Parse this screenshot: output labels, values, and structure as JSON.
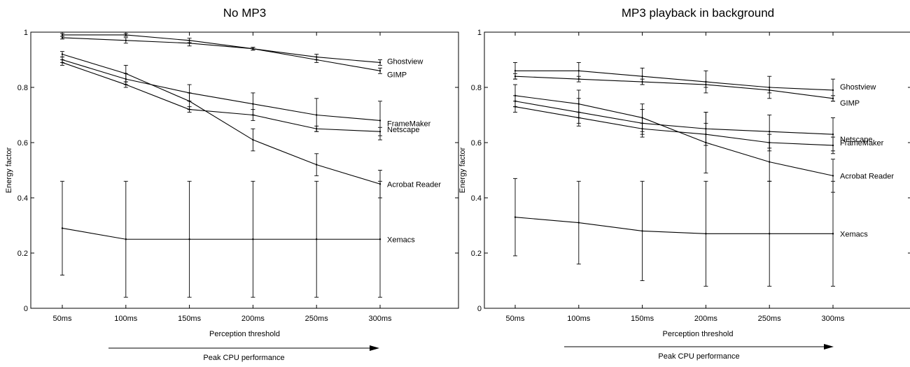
{
  "header_fragment": "",
  "chart_data": [
    {
      "type": "line",
      "title": "No MP3",
      "xlabel": "Perception threshold",
      "ylabel": "Energy factor",
      "arrow_label": "Peak CPU performance",
      "categories": [
        "50ms",
        "100ms",
        "150ms",
        "200ms",
        "250ms",
        "300ms"
      ],
      "ylim": [
        0,
        1
      ],
      "yticks": [
        "0",
        "0.2",
        "0.4",
        "0.6",
        "0.8",
        "1"
      ],
      "grid": false,
      "series": [
        {
          "name": "Ghostview",
          "values": [
            0.99,
            0.99,
            0.97,
            0.94,
            0.91,
            0.89
          ],
          "err": [
            0.005,
            0.005,
            0.008,
            0.005,
            0.01,
            0.01
          ]
        },
        {
          "name": "GIMP",
          "values": [
            0.98,
            0.97,
            0.96,
            0.94,
            0.9,
            0.86
          ],
          "err": [
            0.005,
            0.01,
            0.01,
            0.005,
            0.01,
            0.01
          ]
        },
        {
          "name": "Netscape",
          "values": [
            0.89,
            0.81,
            0.72,
            0.7,
            0.65,
            0.64
          ],
          "err": [
            0.01,
            0.01,
            0.01,
            0.02,
            0.01,
            0.015
          ]
        },
        {
          "name": "FrameMaker",
          "values": [
            0.9,
            0.83,
            0.78,
            0.74,
            0.7,
            0.68
          ],
          "err": [
            0.01,
            0.02,
            0.03,
            0.04,
            0.06,
            0.07
          ]
        },
        {
          "name": "Acrobat Reader",
          "values": [
            0.92,
            0.85,
            0.75,
            0.61,
            0.52,
            0.45
          ],
          "err": [
            0.01,
            0.03,
            0.03,
            0.04,
            0.04,
            0.05
          ]
        },
        {
          "name": "Xemacs",
          "values": [
            0.29,
            0.25,
            0.25,
            0.25,
            0.25,
            0.25
          ],
          "err": [
            0.17,
            0.21,
            0.21,
            0.21,
            0.21,
            0.21
          ]
        }
      ]
    },
    {
      "type": "line",
      "title": "MP3 playback in background",
      "xlabel": "Perception threshold",
      "ylabel": "Energy factor",
      "arrow_label": "Peak CPU performance",
      "categories": [
        "50ms",
        "100ms",
        "150ms",
        "200ms",
        "250ms",
        "300ms"
      ],
      "ylim": [
        0,
        1
      ],
      "yticks": [
        "0",
        "0.2",
        "0.4",
        "0.6",
        "0.8",
        "1"
      ],
      "grid": false,
      "series": [
        {
          "name": "Ghostview",
          "values": [
            0.86,
            0.86,
            0.84,
            0.82,
            0.8,
            0.79
          ],
          "err": [
            0.03,
            0.03,
            0.03,
            0.04,
            0.04,
            0.04
          ]
        },
        {
          "name": "GIMP",
          "values": [
            0.84,
            0.83,
            0.82,
            0.81,
            0.79,
            0.76
          ],
          "err": [
            0.01,
            0.01,
            0.01,
            0.01,
            0.01,
            0.01
          ]
        },
        {
          "name": "FrameMaker",
          "values": [
            0.73,
            0.69,
            0.65,
            0.63,
            0.6,
            0.59
          ],
          "err": [
            0.02,
            0.02,
            0.02,
            0.04,
            0.03,
            0.03
          ]
        },
        {
          "name": "Netscape",
          "values": [
            0.75,
            0.71,
            0.67,
            0.65,
            0.64,
            0.63
          ],
          "err": [
            0.02,
            0.05,
            0.05,
            0.06,
            0.06,
            0.06
          ]
        },
        {
          "name": "Acrobat Reader",
          "values": [
            0.77,
            0.74,
            0.69,
            0.6,
            0.53,
            0.48
          ],
          "err": [
            0.04,
            0.05,
            0.05,
            0.11,
            0.07,
            0.06
          ]
        },
        {
          "name": "Xemacs",
          "values": [
            0.33,
            0.31,
            0.28,
            0.27,
            0.27,
            0.27
          ],
          "err": [
            0.14,
            0.15,
            0.18,
            0.19,
            0.19,
            0.19
          ]
        }
      ]
    }
  ]
}
